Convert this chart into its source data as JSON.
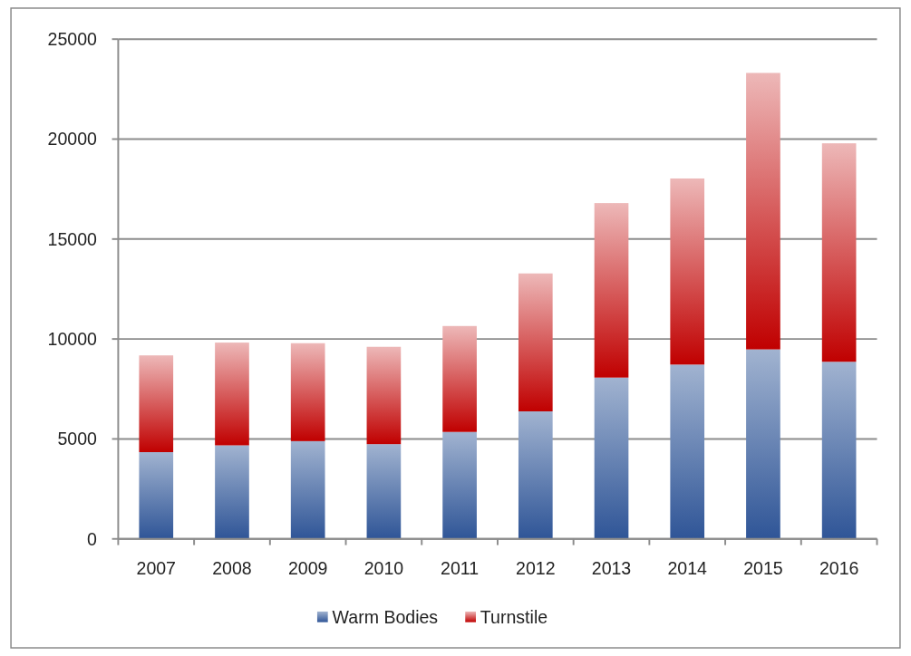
{
  "chart_data": {
    "type": "bar",
    "stacked": true,
    "categories": [
      "2007",
      "2008",
      "2009",
      "2010",
      "2011",
      "2012",
      "2013",
      "2014",
      "2015",
      "2016"
    ],
    "series": [
      {
        "name": "Warm Bodies",
        "color": "#2f5597",
        "values": [
          4340,
          4680,
          4890,
          4740,
          5350,
          6380,
          8070,
          8720,
          9480,
          8860
        ]
      },
      {
        "name": "Turnstile",
        "color": "#c00000",
        "values": [
          4840,
          5140,
          4900,
          4870,
          5300,
          6900,
          8730,
          9310,
          13830,
          10930
        ]
      }
    ],
    "ylim": [
      0,
      25000
    ],
    "yticks": [
      0,
      5000,
      10000,
      15000,
      20000,
      25000
    ],
    "grid": "y",
    "legend": "bottom"
  }
}
